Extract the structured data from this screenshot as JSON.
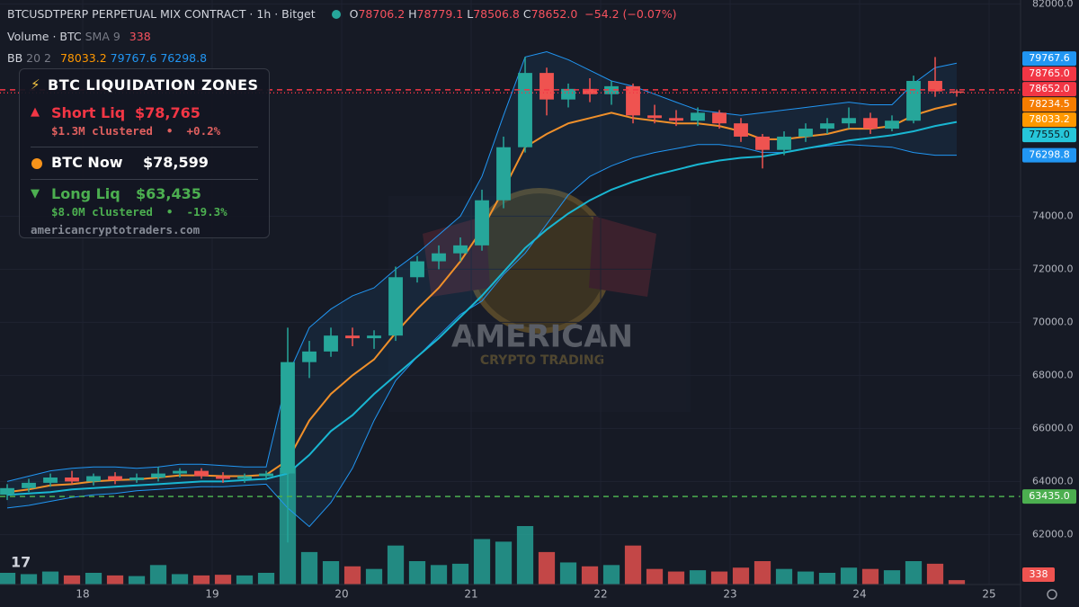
{
  "header": {
    "symbol": "BTCUSDTPERP PERPETUAL MIX CONTRACT · 1h · Bitget",
    "ohlc": [
      {
        "label": "O",
        "value": "78706.2"
      },
      {
        "label": "H",
        "value": "78779.1"
      },
      {
        "label": "L",
        "value": "78506.8"
      },
      {
        "label": "C",
        "value": "78652.0"
      }
    ],
    "change": "−54.2 (−0.07%)"
  },
  "indicators": [
    {
      "label": "Volume · BTC",
      "params": "SMA 9",
      "values": [
        "338"
      ]
    },
    {
      "label": "BB",
      "params": "20 2",
      "values": [
        "78033.2",
        "79767.6",
        "76298.8"
      ]
    }
  ],
  "panel": {
    "title": "BTC LIQUIDATION ZONES",
    "short": {
      "label": "Short Liq",
      "price": "$78,765",
      "detail": "$1.3M clustered  •  +0.2%"
    },
    "now": {
      "label": "BTC Now",
      "price": "$78,599"
    },
    "long": {
      "label": "Long Liq",
      "price": "$63,435",
      "detail": "$8.0M clustered  •  -19.3%"
    },
    "site": "americancryptotraders.com"
  },
  "watermark": {
    "line1": "AMERICAN",
    "line2": "CRYPTO TRADING"
  },
  "chart_data": {
    "type": "candlestick",
    "x": [
      17.4167,
      17.5833,
      17.75,
      17.9167,
      18.0833,
      18.25,
      18.4167,
      18.5833,
      18.75,
      18.9167,
      19.0833,
      19.25,
      19.4167,
      19.5833,
      19.75,
      19.9167,
      20.0833,
      20.25,
      20.4167,
      20.5833,
      20.75,
      20.9167,
      21.0833,
      21.25,
      21.4167,
      21.5833,
      21.75,
      21.9167,
      22.0833,
      22.25,
      22.4167,
      22.5833,
      22.75,
      22.9167,
      23.0833,
      23.25,
      23.4167,
      23.5833,
      23.75,
      23.9167,
      24.0833,
      24.25,
      24.4167,
      24.5833,
      24.75
    ],
    "open": [
      63500,
      63750,
      63950,
      64150,
      64000,
      64200,
      64050,
      64150,
      64300,
      64400,
      64200,
      64100,
      64200,
      64300,
      68500,
      68900,
      69500,
      69400,
      69500,
      71700,
      72300,
      72600,
      72900,
      74600,
      76600,
      79400,
      78400,
      78800,
      78600,
      78900,
      77800,
      77700,
      77600,
      77900,
      77500,
      77000,
      76500,
      77000,
      77300,
      77500,
      77700,
      77300,
      77600,
      79100,
      78706.2
    ],
    "high": [
      63900,
      64100,
      64300,
      64400,
      64300,
      64350,
      64300,
      64550,
      64500,
      64500,
      64350,
      64300,
      64400,
      69800,
      69300,
      69800,
      69800,
      69700,
      72100,
      72500,
      72900,
      73200,
      75000,
      77000,
      80000,
      79600,
      79000,
      79200,
      79100,
      79000,
      78200,
      78000,
      78100,
      78000,
      77700,
      77100,
      77200,
      77500,
      77700,
      78100,
      77900,
      77800,
      79300,
      80000,
      78779.1
    ],
    "low": [
      63300,
      63600,
      63800,
      63900,
      63850,
      63900,
      63950,
      64000,
      64150,
      64100,
      63950,
      63950,
      64050,
      61700,
      67900,
      68700,
      69100,
      69000,
      69300,
      71500,
      72000,
      72300,
      72700,
      74300,
      76400,
      77800,
      78100,
      78300,
      78200,
      77500,
      77500,
      77400,
      77400,
      77300,
      76800,
      75800,
      76300,
      76800,
      77100,
      77300,
      77100,
      77200,
      77500,
      78500,
      78506.8
    ],
    "close": [
      63750,
      63950,
      64150,
      64000,
      64200,
      64050,
      64150,
      64300,
      64400,
      64200,
      64100,
      64200,
      64300,
      68500,
      68900,
      69500,
      69400,
      69500,
      71700,
      72300,
      72600,
      72900,
      74600,
      76600,
      79400,
      78400,
      78800,
      78600,
      78900,
      77800,
      77700,
      77600,
      77900,
      77500,
      77000,
      76500,
      77000,
      77300,
      77500,
      77700,
      77300,
      77600,
      79100,
      78706.2,
      78652.0
    ],
    "volume": [
      900,
      800,
      1000,
      700,
      900,
      700,
      650,
      1500,
      800,
      700,
      750,
      700,
      900,
      9000,
      2500,
      1800,
      1400,
      1200,
      3000,
      1800,
      1500,
      1600,
      3500,
      3300,
      4500,
      2500,
      1700,
      1400,
      1500,
      3000,
      1200,
      1000,
      1100,
      1000,
      1300,
      1800,
      1200,
      1000,
      900,
      1300,
      1200,
      1100,
      1800,
      1600,
      338
    ],
    "up_color": "#26a69a",
    "down_color": "#ef5350",
    "overlays": [
      {
        "color": "#2196f3",
        "values": [
          64000,
          64200,
          64400,
          64500,
          64550,
          64550,
          64500,
          64550,
          64650,
          64650,
          64600,
          64550,
          64550,
          68000,
          69800,
          70500,
          71000,
          71300,
          72000,
          72600,
          73300,
          74000,
          75500,
          77800,
          80000,
          80200,
          79900,
          79500,
          79100,
          78900,
          78600,
          78300,
          78000,
          77900,
          77800,
          77900,
          78000,
          78100,
          78200,
          78300,
          78200,
          78200,
          79000,
          79600,
          79767.6
        ]
      },
      {
        "color": "#2196f3",
        "values": [
          63000,
          63100,
          63250,
          63400,
          63500,
          63550,
          63650,
          63700,
          63750,
          63800,
          63800,
          63850,
          63900,
          63000,
          62300,
          63200,
          64500,
          66300,
          67800,
          68700,
          69500,
          70300,
          70800,
          71800,
          72600,
          73700,
          74800,
          75500,
          75900,
          76200,
          76400,
          76550,
          76700,
          76700,
          76600,
          76400,
          76400,
          76550,
          76650,
          76700,
          76650,
          76600,
          76400,
          76300,
          76298.8
        ]
      },
      {
        "color": "#f0902a",
        "values": [
          63600,
          63700,
          63850,
          63900,
          64000,
          64050,
          64080,
          64150,
          64230,
          64230,
          64200,
          64200,
          64250,
          64800,
          66300,
          67300,
          68000,
          68600,
          69600,
          70500,
          71300,
          72300,
          73500,
          75000,
          76600,
          77100,
          77500,
          77700,
          77900,
          77700,
          77600,
          77500,
          77500,
          77400,
          77200,
          76900,
          76900,
          77000,
          77100,
          77300,
          77300,
          77400,
          77800,
          78050,
          78234.5
        ]
      },
      {
        "color": "#19b6d2",
        "values": [
          63500,
          63550,
          63600,
          63700,
          63750,
          63800,
          63850,
          63900,
          63950,
          64000,
          64000,
          64050,
          64100,
          64300,
          65000,
          65900,
          66500,
          67300,
          68000,
          68700,
          69400,
          70200,
          71000,
          71900,
          72800,
          73500,
          74100,
          74600,
          75000,
          75300,
          75550,
          75750,
          75950,
          76100,
          76200,
          76250,
          76400,
          76550,
          76700,
          76850,
          76950,
          77050,
          77200,
          77400,
          77555.0
        ]
      }
    ],
    "price_tags": [
      {
        "value": 79767.6,
        "label": "79767.6",
        "color": "#2196f3"
      },
      {
        "value": 78765,
        "label": "78765.0",
        "color": "#f23645",
        "line": "dashed"
      },
      {
        "value": 78652,
        "label": "78652.0",
        "color": "#f23645",
        "line": "dotted"
      },
      {
        "value": 78234.5,
        "label": "78234.5",
        "color": "#f57c00"
      },
      {
        "value": 78033.2,
        "label": "78033.2",
        "color": "#ff9800"
      },
      {
        "value": 77555,
        "label": "77555.0",
        "color": "#26c6da"
      },
      {
        "value": 76298.8,
        "label": "76298.8",
        "color": "#2196f3"
      },
      {
        "value": 63435,
        "label": "63435.0",
        "color": "#4caf50",
        "line": "dashed"
      }
    ],
    "xlim": [
      17.361,
      25.243
    ],
    "ylim": [
      60116,
      82150
    ],
    "xticks": [
      18,
      19,
      20,
      21,
      22,
      23,
      24,
      25
    ],
    "yticks": [
      {
        "value": 62000,
        "label": "62000.0"
      },
      {
        "value": 64000,
        "label": "64000.0"
      },
      {
        "value": 66000,
        "label": "66000.0"
      },
      {
        "value": 68000,
        "label": "68000.0"
      },
      {
        "value": 70000,
        "label": "70000.0"
      },
      {
        "value": 72000,
        "label": "72000.0"
      },
      {
        "value": 74000,
        "label": "74000.0"
      },
      {
        "value": 82000,
        "label": "82000.0"
      }
    ],
    "grid": true
  }
}
